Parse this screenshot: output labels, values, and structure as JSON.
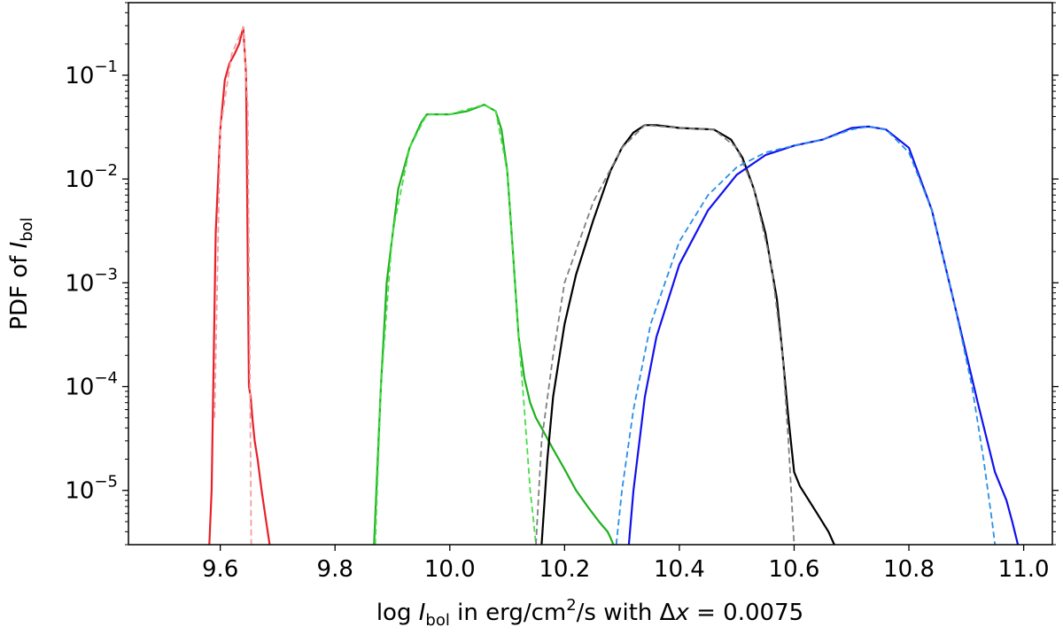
{
  "chart_data": {
    "type": "line",
    "title": "",
    "xlabel": {
      "pre": "log ",
      "var": "I",
      "sub": "bol",
      "mid": " in erg/cm",
      "sup": "2",
      "post": "/s with ",
      "delta": "Δ",
      "dvar": "x",
      "eq": " = 0.0075"
    },
    "ylabel": {
      "pre": "PDF of ",
      "var": "I",
      "sub": "bol"
    },
    "x_scale": "linear",
    "y_scale": "log",
    "xlim": [
      9.44,
      11.05
    ],
    "ylim": [
      3e-06,
      0.5
    ],
    "grid": false,
    "legend": "none",
    "x_ticks": [
      9.6,
      9.8,
      10.0,
      10.2,
      10.4,
      10.6,
      10.8,
      11.0
    ],
    "x_tick_labels": [
      "9.6",
      "9.8",
      "10.0",
      "10.2",
      "10.4",
      "10.6",
      "10.8",
      "11.0"
    ],
    "y_ticks": [
      {
        "value": 1e-05,
        "base": "10",
        "exp": "−5"
      },
      {
        "value": 0.0001,
        "base": "10",
        "exp": "−4"
      },
      {
        "value": 0.001,
        "base": "10",
        "exp": "−3"
      },
      {
        "value": 0.01,
        "base": "10",
        "exp": "−2"
      },
      {
        "value": 0.1,
        "base": "10",
        "exp": "−1"
      }
    ],
    "series": [
      {
        "color": "#e8202a",
        "style": "solid",
        "x": [
          9.581,
          9.585,
          9.592,
          9.6,
          9.608,
          9.616,
          9.625,
          9.633,
          9.64,
          9.645,
          9.65,
          9.653,
          9.656,
          9.66,
          9.665,
          9.672,
          9.68,
          9.686
        ],
        "y": [
          3e-06,
          1e-05,
          0.003,
          0.03,
          0.09,
          0.13,
          0.16,
          0.2,
          0.29,
          0.1,
          0.0001,
          8e-05,
          5e-05,
          3e-05,
          2e-05,
          1e-05,
          5e-06,
          3e-06
        ]
      },
      {
        "color": "#f0a0a0",
        "style": "dashed",
        "x": [
          9.59,
          9.6,
          9.62,
          9.64,
          9.648,
          9.652,
          9.654
        ],
        "y": [
          5e-05,
          0.03,
          0.16,
          0.29,
          0.05,
          0.0001,
          3e-06
        ]
      },
      {
        "color": "#1fb01f",
        "style": "solid",
        "x": [
          9.868,
          9.872,
          9.88,
          9.89,
          9.91,
          9.93,
          9.95,
          9.96,
          10.0,
          10.03,
          10.06,
          10.08,
          10.09,
          10.1,
          10.11,
          10.12,
          10.13,
          10.14,
          10.15,
          10.16,
          10.18,
          10.2,
          10.22,
          10.24,
          10.26,
          10.275,
          10.28,
          10.285
        ],
        "y": [
          3e-06,
          1e-05,
          0.0001,
          0.001,
          0.008,
          0.02,
          0.035,
          0.042,
          0.042,
          0.045,
          0.052,
          0.045,
          0.03,
          0.012,
          0.002,
          0.0003,
          0.00012,
          7e-05,
          5e-05,
          4e-05,
          2.5e-05,
          1.6e-05,
          1e-05,
          7e-06,
          5e-06,
          4e-06,
          3.5e-06,
          3e-06
        ]
      },
      {
        "color": "#44e044",
        "style": "dashed",
        "x": [
          9.87,
          9.88,
          9.9,
          9.93,
          9.96,
          10.0,
          10.06,
          10.08,
          10.1,
          10.12,
          10.13,
          10.14,
          10.146,
          10.15
        ],
        "y": [
          3e-06,
          0.0001,
          0.003,
          0.02,
          0.042,
          0.042,
          0.052,
          0.045,
          0.012,
          0.0003,
          6e-05,
          1e-05,
          5e-06,
          3e-06
        ]
      },
      {
        "color": "#000000",
        "style": "solid",
        "x": [
          10.16,
          10.17,
          10.18,
          10.2,
          10.22,
          10.25,
          10.28,
          10.3,
          10.32,
          10.34,
          10.36,
          10.4,
          10.46,
          10.49,
          10.51,
          10.53,
          10.55,
          10.57,
          10.58,
          10.59,
          10.6,
          10.61,
          10.62,
          10.64,
          10.66,
          10.67
        ],
        "y": [
          3e-06,
          2e-05,
          8e-05,
          0.0004,
          0.0012,
          0.004,
          0.012,
          0.02,
          0.028,
          0.033,
          0.033,
          0.031,
          0.03,
          0.024,
          0.016,
          0.008,
          0.003,
          0.0007,
          0.0002,
          5e-05,
          1.5e-05,
          1.1e-05,
          9e-06,
          6e-06,
          4e-06,
          3e-06
        ]
      },
      {
        "color": "#808080",
        "style": "dashed",
        "x": [
          10.15,
          10.16,
          10.18,
          10.2,
          10.25,
          10.3,
          10.34,
          10.4,
          10.46,
          10.5,
          10.53,
          10.56,
          10.58,
          10.59,
          10.6
        ],
        "y": [
          3e-06,
          3e-05,
          0.0002,
          0.001,
          0.006,
          0.02,
          0.033,
          0.031,
          0.03,
          0.02,
          0.008,
          0.0015,
          0.0002,
          3e-05,
          3e-06
        ]
      },
      {
        "color": "#1010f0",
        "style": "solid",
        "x": [
          10.312,
          10.32,
          10.34,
          10.36,
          10.4,
          10.45,
          10.5,
          10.55,
          10.6,
          10.65,
          10.7,
          10.73,
          10.76,
          10.8,
          10.84,
          10.88,
          10.92,
          10.95,
          10.97,
          10.98,
          10.99
        ],
        "y": [
          3e-06,
          1e-05,
          8e-05,
          0.0003,
          0.0015,
          0.005,
          0.011,
          0.017,
          0.021,
          0.024,
          0.031,
          0.032,
          0.03,
          0.02,
          0.005,
          0.0006,
          7e-05,
          1.5e-05,
          8e-06,
          5e-06,
          3e-06
        ]
      },
      {
        "color": "#2a8fe8",
        "style": "dashed",
        "x": [
          10.29,
          10.3,
          10.32,
          10.35,
          10.4,
          10.45,
          10.5,
          10.55,
          10.6,
          10.65,
          10.7,
          10.73,
          10.76,
          10.8,
          10.84,
          10.88,
          10.91,
          10.93,
          10.945,
          10.95
        ],
        "y": [
          3e-06,
          1e-05,
          6e-05,
          0.0004,
          0.0025,
          0.007,
          0.013,
          0.018,
          0.021,
          0.024,
          0.03,
          0.032,
          0.03,
          0.018,
          0.005,
          0.0006,
          0.0001,
          2e-05,
          5e-06,
          3e-06
        ]
      }
    ]
  }
}
